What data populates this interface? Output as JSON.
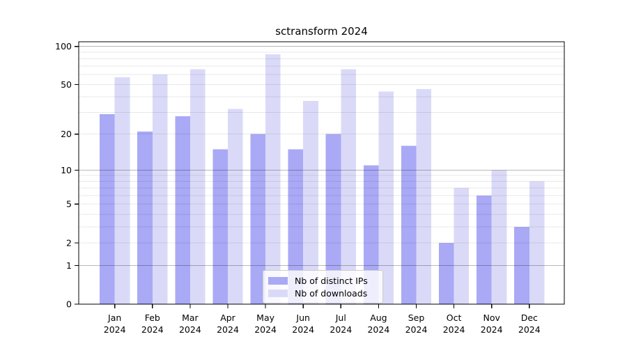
{
  "title": "sctransform 2024",
  "legend": {
    "items": [
      {
        "label": "Nb of distinct IPs",
        "color": "#a9a9f6"
      },
      {
        "label": "Nb of downloads",
        "color": "#dadaf8"
      }
    ]
  },
  "axes": {
    "y_tick_labels": [
      "0",
      "1",
      "2",
      "5",
      "10",
      "20",
      "50",
      "100"
    ],
    "x_tick_line2": "2024"
  },
  "chart_data": {
    "type": "bar",
    "title": "sctransform 2024",
    "categories": [
      "Jan 2024",
      "Feb 2024",
      "Mar 2024",
      "Apr 2024",
      "May 2024",
      "Jun 2024",
      "Jul 2024",
      "Aug 2024",
      "Sep 2024",
      "Oct 2024",
      "Nov 2024",
      "Dec 2024"
    ],
    "series": [
      {
        "name": "Nb of distinct IPs",
        "color": "#a9a9f6",
        "values": [
          29,
          21,
          28,
          15,
          20,
          15,
          20,
          11,
          16,
          2,
          6,
          3
        ]
      },
      {
        "name": "Nb of downloads",
        "color": "#dadaf8",
        "values": [
          57,
          60,
          66,
          32,
          87,
          37,
          66,
          44,
          46,
          7,
          10,
          8
        ]
      }
    ],
    "xlabel": "",
    "ylabel": "",
    "yscale": "log1p",
    "ylim": [
      0,
      110
    ],
    "yticks": [
      0,
      1,
      2,
      5,
      10,
      20,
      50,
      100
    ],
    "minor_gridlines": [
      2,
      3,
      4,
      5,
      6,
      7,
      8,
      9,
      20,
      30,
      40,
      50,
      60,
      70,
      80,
      90
    ],
    "major_gridlines": [
      1,
      10,
      100
    ],
    "grid": "horizontal",
    "legend_position": "lower center-right inside plot"
  },
  "colors": {
    "major_grid": "rgba(0,0,0,0.28)",
    "minor_grid": "rgba(0,0,0,0.09)",
    "axis": "#000000",
    "background": "#ffffff"
  }
}
